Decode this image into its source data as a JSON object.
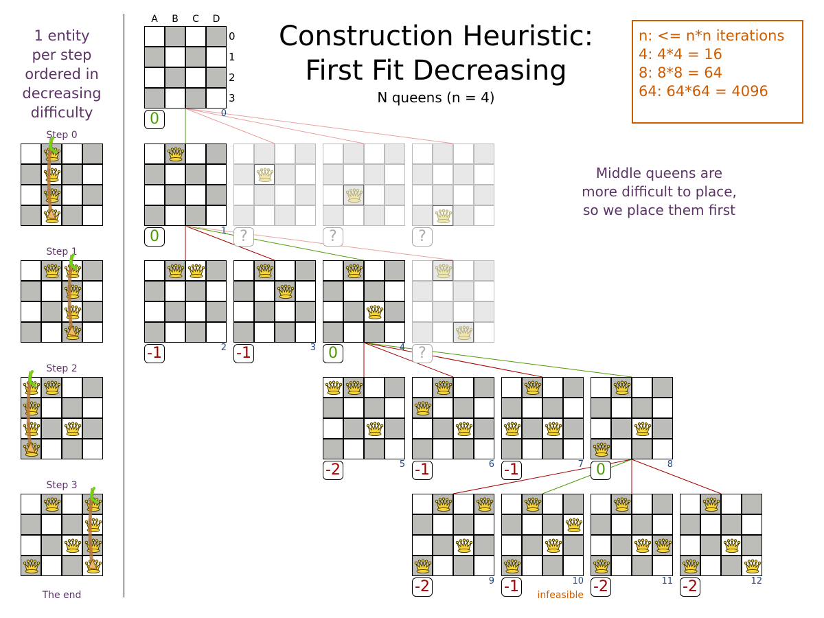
{
  "title_line1": "Construction Heuristic:",
  "title_line2": "First Fit Decreasing",
  "subtitle": "N queens (n = 4)",
  "left_note": [
    "1 entity",
    "per step",
    "ordered in",
    "decreasing",
    "difficulty"
  ],
  "middle_note": [
    "Middle queens are",
    "more difficult to place,",
    "so we place them first"
  ],
  "info_box": [
    "n: <= n*n iterations",
    "4: 4*4 = 16",
    "8: 8*8 = 64",
    "64: 64*64 = 4096"
  ],
  "column_labels": [
    "A",
    "B",
    "C",
    "D"
  ],
  "row_labels": [
    "0",
    "1",
    "2",
    "3"
  ],
  "colors": {
    "dark_cell": "#bcbdb8",
    "score_ok": "#4e9a06",
    "score_bad": "#a40000",
    "edge_chosen": "#4e9a06",
    "edge_rejected": "#a40000",
    "edge_unexplored": "#e8a0a0",
    "note_purple": "#5c3566",
    "info_orange": "#ce5c00",
    "node_number": "#204a87"
  },
  "boards": [
    {
      "id": "0",
      "queens": [],
      "score": "0",
      "faded": false
    },
    {
      "id": "1",
      "queens": [
        "B0"
      ],
      "score": "0",
      "faded": false
    },
    {
      "id": "1b",
      "queens": [
        "B1"
      ],
      "score": "?",
      "faded": true
    },
    {
      "id": "1c",
      "queens": [
        "B2"
      ],
      "score": "?",
      "faded": true
    },
    {
      "id": "1d",
      "queens": [
        "B3"
      ],
      "score": "?",
      "faded": true
    },
    {
      "id": "2",
      "queens": [
        "B0",
        "C0"
      ],
      "score": "-1",
      "faded": false
    },
    {
      "id": "3",
      "queens": [
        "B0",
        "C1"
      ],
      "score": "-1",
      "faded": false
    },
    {
      "id": "4",
      "queens": [
        "B0",
        "C2"
      ],
      "score": "0",
      "faded": false
    },
    {
      "id": "4b",
      "queens": [
        "B0",
        "C3"
      ],
      "score": "?",
      "faded": true
    },
    {
      "id": "5",
      "queens": [
        "A0",
        "B0",
        "C2"
      ],
      "score": "-2",
      "faded": false
    },
    {
      "id": "6",
      "queens": [
        "A1",
        "B0",
        "C2"
      ],
      "score": "-1",
      "faded": false
    },
    {
      "id": "7",
      "queens": [
        "A2",
        "B0",
        "C2"
      ],
      "score": "-1",
      "faded": false
    },
    {
      "id": "8",
      "queens": [
        "A3",
        "B0",
        "C2"
      ],
      "score": "0",
      "faded": false
    },
    {
      "id": "9",
      "queens": [
        "A3",
        "B0",
        "C2",
        "D0"
      ],
      "score": "-2",
      "faded": false
    },
    {
      "id": "10",
      "queens": [
        "A3",
        "B0",
        "C2",
        "D1"
      ],
      "score": "-1",
      "faded": false,
      "note": "infeasible"
    },
    {
      "id": "11",
      "queens": [
        "A3",
        "B0",
        "C2",
        "D2"
      ],
      "score": "-2",
      "faded": false
    },
    {
      "id": "12",
      "queens": [
        "A3",
        "B0",
        "C2",
        "D3"
      ],
      "score": "-2",
      "faded": false
    }
  ],
  "edges": [
    {
      "from": "0",
      "to": "1",
      "type": "chosen"
    },
    {
      "from": "0",
      "to": "1b",
      "type": "unexplored"
    },
    {
      "from": "0",
      "to": "1c",
      "type": "unexplored"
    },
    {
      "from": "0",
      "to": "1d",
      "type": "unexplored"
    },
    {
      "from": "1",
      "to": "2",
      "type": "rejected"
    },
    {
      "from": "1",
      "to": "3",
      "type": "rejected"
    },
    {
      "from": "1",
      "to": "4",
      "type": "chosen"
    },
    {
      "from": "1",
      "to": "4b",
      "type": "unexplored"
    },
    {
      "from": "4",
      "to": "5",
      "type": "rejected"
    },
    {
      "from": "4",
      "to": "6",
      "type": "rejected"
    },
    {
      "from": "4",
      "to": "7",
      "type": "rejected"
    },
    {
      "from": "4",
      "to": "8",
      "type": "chosen"
    },
    {
      "from": "8",
      "to": "9",
      "type": "rejected"
    },
    {
      "from": "8",
      "to": "10",
      "type": "chosen"
    },
    {
      "from": "8",
      "to": "11",
      "type": "rejected"
    },
    {
      "from": "8",
      "to": "12",
      "type": "rejected"
    }
  ],
  "steps": [
    {
      "label": "Step 0",
      "queens": [
        "B0",
        "B1",
        "B2",
        "B3"
      ],
      "moving_column": "B"
    },
    {
      "label": "Step 1",
      "queens": [
        "B0",
        "C0",
        "C1",
        "C2",
        "C3"
      ],
      "moving_column": "C"
    },
    {
      "label": "Step 2",
      "queens": [
        "B0",
        "C2",
        "A0",
        "A1",
        "A2",
        "A3"
      ],
      "moving_column": "A"
    },
    {
      "label": "Step 3",
      "queens": [
        "A3",
        "B0",
        "C2",
        "D0",
        "D1",
        "D2",
        "D3"
      ],
      "moving_column": "D"
    }
  ],
  "end_label": "The end"
}
